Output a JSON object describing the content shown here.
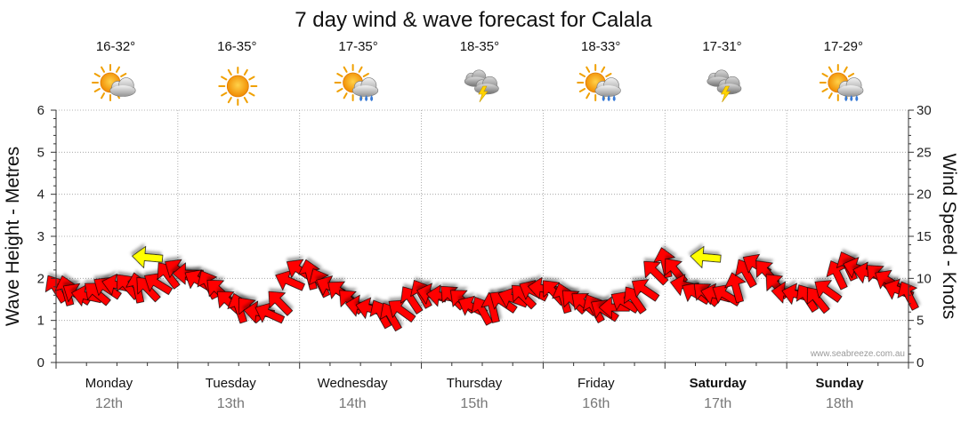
{
  "chart_data": {
    "type": "line",
    "title": "7 day wind & wave forecast for Calala",
    "ylabel_left": "Wave Height - Metres",
    "ylabel_right": "Wind Speed - Knots",
    "ylim_left": [
      0,
      6
    ],
    "ylim_right": [
      0,
      30
    ],
    "yticks_left": [
      "0",
      "1",
      "2",
      "3",
      "4",
      "5",
      "6"
    ],
    "yticks_right": [
      "0",
      "5",
      "10",
      "15",
      "20",
      "25",
      "30"
    ],
    "grid": true,
    "days": [
      {
        "name": "Monday",
        "date": "12th",
        "temp": "16-32°",
        "icon": "partly-cloudy-icon",
        "bold": false
      },
      {
        "name": "Tuesday",
        "date": "13th",
        "temp": "16-35°",
        "icon": "sunny-icon",
        "bold": false
      },
      {
        "name": "Wednesday",
        "date": "14th",
        "temp": "17-35°",
        "icon": "partly-cloudy-showers-icon",
        "bold": false
      },
      {
        "name": "Thursday",
        "date": "15th",
        "temp": "18-35°",
        "icon": "thunderstorm-icon",
        "bold": false
      },
      {
        "name": "Friday",
        "date": "16th",
        "temp": "18-33°",
        "icon": "partly-cloudy-showers-icon",
        "bold": false
      },
      {
        "name": "Saturday",
        "date": "17th",
        "temp": "17-31°",
        "icon": "thunderstorm-icon",
        "bold": true
      },
      {
        "name": "Sunday",
        "date": "18th",
        "temp": "17-29°",
        "icon": "partly-cloudy-showers-icon",
        "bold": true
      }
    ],
    "wind_series": {
      "name": "Wind Speed (knots)",
      "x_hours": [
        0,
        6,
        12,
        18,
        24,
        30,
        36,
        42,
        48,
        54,
        60,
        66,
        72,
        78,
        84,
        90,
        96,
        102,
        108,
        114,
        120,
        126,
        132,
        138,
        144,
        150,
        156,
        162,
        168
      ],
      "values": [
        8.8,
        7.9,
        9.2,
        8.8,
        11.0,
        9.3,
        6.5,
        5.8,
        11.0,
        9.0,
        6.7,
        5.5,
        8.2,
        7.8,
        6.2,
        7.6,
        8.8,
        7.3,
        6.2,
        7.5,
        11.9,
        8.2,
        8.0,
        11.6,
        8.3,
        7.5,
        11.5,
        10.3,
        8.0
      ],
      "color_stops": [
        "#ff0000",
        "#ffff00"
      ],
      "highlight_points": [
        {
          "x_hour": 18,
          "value": 12.5,
          "color": "#ffff00"
        },
        {
          "x_hour": 128,
          "value": 12.5,
          "color": "#ffff00"
        }
      ]
    },
    "credit": "www.seabreeze.com.au"
  }
}
